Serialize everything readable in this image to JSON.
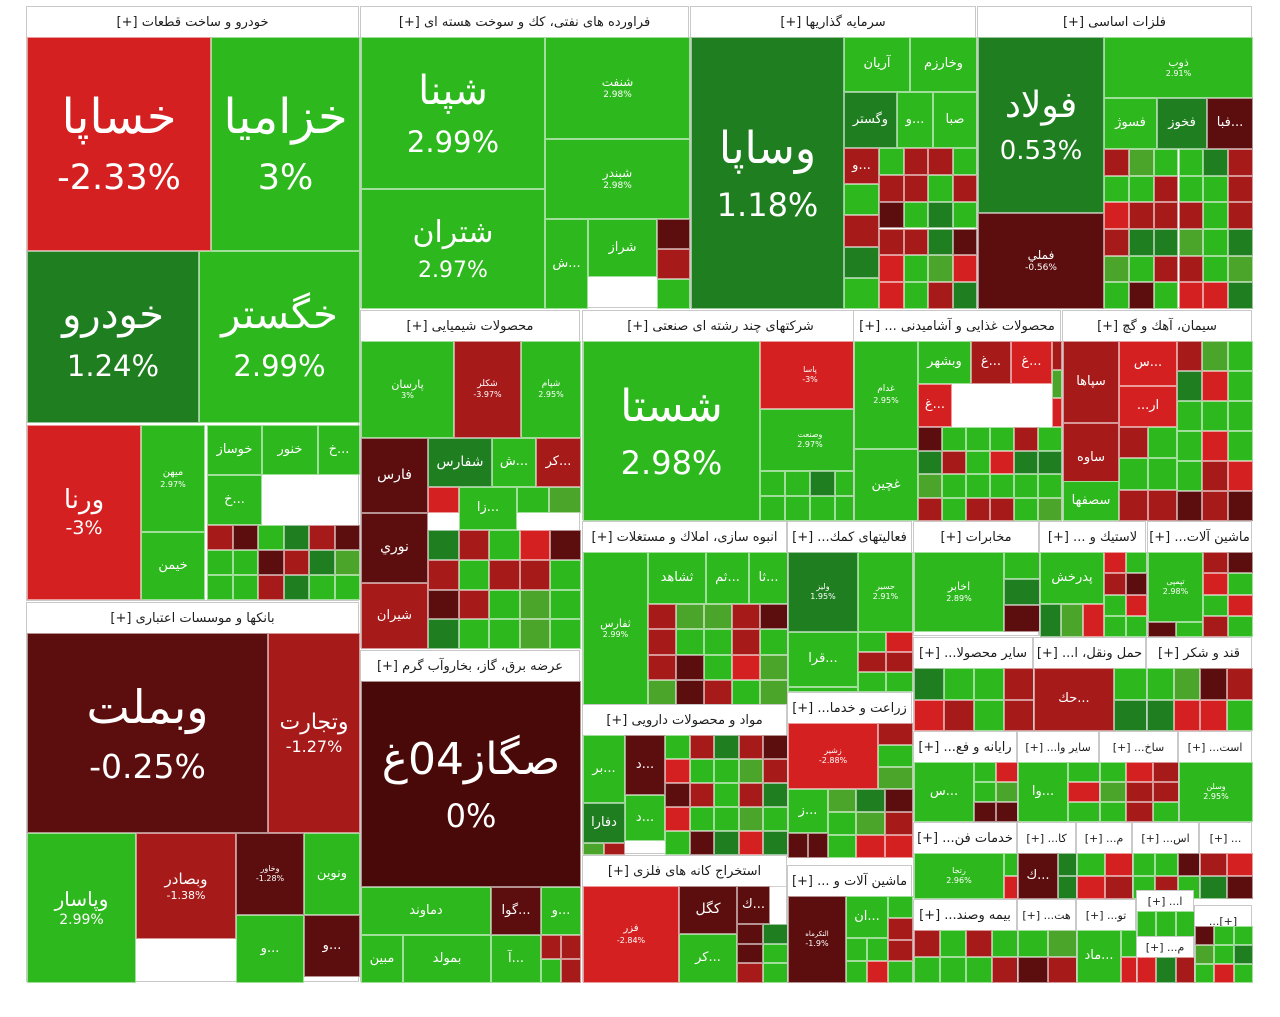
{
  "colors": {
    "up": "#2db81d",
    "upDark": "#1f7e1f",
    "upMid": "#4aa52a",
    "down": "#d42020",
    "downMid": "#a71a1a",
    "downDark": "#5c0d0d",
    "flat": "#4a0909"
  },
  "sections": [
    {
      "id": "auto",
      "title": "خودرو و ساخت قطعات [+]",
      "tiles": [
        {
          "ticker": "خساپا",
          "pct": "-2.33%",
          "tone": "down"
        },
        {
          "ticker": "خزامیا",
          "pct": "3%",
          "tone": "up"
        },
        {
          "ticker": "خودرو",
          "pct": "1.24%",
          "tone": "upDark"
        },
        {
          "ticker": "خگستر",
          "pct": "2.99%",
          "tone": "up"
        },
        {
          "ticker": "ورنا",
          "pct": "-3%",
          "tone": "down"
        },
        {
          "ticker": "خیمن",
          "pct": "",
          "tone": "up"
        },
        {
          "ticker": "ميهن",
          "pct": "2.97%",
          "tone": "up"
        },
        {
          "ticker": "خوساز",
          "pct": "",
          "tone": "up"
        },
        {
          "ticker": "خنور",
          "pct": "",
          "tone": "up"
        },
        {
          "ticker": "خ...",
          "pct": "",
          "tone": "up"
        },
        {
          "ticker": "خ...",
          "pct": "",
          "tone": "up"
        }
      ]
    },
    {
      "id": "oil",
      "title": "فراورده های نفتی، کك و سوخت هسته ای [+]",
      "tiles": [
        {
          "ticker": "شپنا",
          "pct": "2.99%",
          "tone": "up"
        },
        {
          "ticker": "شنفت",
          "pct": "2.98%",
          "tone": "up"
        },
        {
          "ticker": "شبندر",
          "pct": "2.98%",
          "tone": "up"
        },
        {
          "ticker": "شتران",
          "pct": "2.97%",
          "tone": "up"
        },
        {
          "ticker": "شراز",
          "pct": "",
          "tone": "up"
        },
        {
          "ticker": "ش...",
          "pct": "",
          "tone": "up"
        }
      ]
    },
    {
      "id": "invest",
      "title": "سرمایه گذاریها [+]",
      "tiles": [
        {
          "ticker": "وساپا",
          "pct": "1.18%",
          "tone": "upDark"
        },
        {
          "ticker": "آریان",
          "pct": "",
          "tone": "up"
        },
        {
          "ticker": "وخارزم",
          "pct": "",
          "tone": "up"
        },
        {
          "ticker": "وگستر",
          "pct": "",
          "tone": "upDark"
        },
        {
          "ticker": "و...",
          "pct": "",
          "tone": "up"
        },
        {
          "ticker": "صبا",
          "pct": "",
          "tone": "up"
        },
        {
          "ticker": "و...",
          "pct": "",
          "tone": "downMid"
        }
      ]
    },
    {
      "id": "metal",
      "title": "فلزات اساسی [+]",
      "tiles": [
        {
          "ticker": "فولاد",
          "pct": "0.53%",
          "tone": "upDark"
        },
        {
          "ticker": "فملي",
          "pct": "-0.56%",
          "tone": "downDark"
        },
        {
          "ticker": "ذوب",
          "pct": "2.91%",
          "tone": "up"
        },
        {
          "ticker": "فسوژ",
          "pct": "",
          "tone": "up"
        },
        {
          "ticker": "فخوز",
          "pct": "",
          "tone": "upDark"
        },
        {
          "ticker": "فبا...",
          "pct": "",
          "tone": "downDark"
        }
      ]
    },
    {
      "id": "chem",
      "title": "محصولات شیمیایی [+]",
      "tiles": [
        {
          "ticker": "پارسان",
          "pct": "3%",
          "tone": "up"
        },
        {
          "ticker": "شکلر",
          "pct": "-3.97%",
          "tone": "downMid"
        },
        {
          "ticker": "شپام",
          "pct": "2.95%",
          "tone": "up"
        },
        {
          "ticker": "فارس",
          "pct": "",
          "tone": "downDark"
        },
        {
          "ticker": "شفارس",
          "pct": "",
          "tone": "upDark"
        },
        {
          "ticker": "ش...",
          "pct": "",
          "tone": "up"
        },
        {
          "ticker": "کر...",
          "pct": "",
          "tone": "downMid"
        },
        {
          "ticker": "زا...",
          "pct": "",
          "tone": "up"
        },
        {
          "ticker": "نوري",
          "pct": "",
          "tone": "downDark"
        },
        {
          "ticker": "شيران",
          "pct": "",
          "tone": "downMid"
        }
      ]
    },
    {
      "id": "multi",
      "title": "شرکتهای چند رشته ای صنعتی [+]",
      "tiles": [
        {
          "ticker": "شستا",
          "pct": "2.98%",
          "tone": "up"
        },
        {
          "ticker": "پاسا",
          "pct": "-3%",
          "tone": "down"
        },
        {
          "ticker": "وصنعت",
          "pct": "2.97%",
          "tone": "up"
        }
      ]
    },
    {
      "id": "food",
      "title": "محصولات غذایی و آشامیدنی ... [+]",
      "tiles": [
        {
          "ticker": "غدام",
          "pct": "2.95%",
          "tone": "up"
        },
        {
          "ticker": "وبشهر",
          "pct": "",
          "tone": "up"
        },
        {
          "ticker": "غ...",
          "pct": "",
          "tone": "downMid"
        },
        {
          "ticker": "غ...",
          "pct": "",
          "tone": "down"
        },
        {
          "ticker": "غ...",
          "pct": "",
          "tone": "down"
        },
        {
          "ticker": "غچین",
          "pct": "",
          "tone": "up"
        }
      ]
    },
    {
      "id": "cement",
      "title": "سیمان، آهك و گچ [+]",
      "tiles": [
        {
          "ticker": "س...",
          "pct": "",
          "tone": "down"
        },
        {
          "ticker": "سپاها",
          "pct": "",
          "tone": "downMid"
        },
        {
          "ticker": "...ار",
          "pct": "",
          "tone": "down"
        },
        {
          "ticker": "ساوه",
          "pct": "",
          "tone": "downMid"
        },
        {
          "ticker": "سصفها",
          "pct": "",
          "tone": "up"
        }
      ]
    },
    {
      "id": "bank",
      "title": "بانکها و موسسات اعتباری [+]",
      "tiles": [
        {
          "ticker": "وبملت",
          "pct": "-0.25%",
          "tone": "downDark"
        },
        {
          "ticker": "وتجارت",
          "pct": "-1.27%",
          "tone": "downMid"
        },
        {
          "ticker": "وپاسار",
          "pct": "2.99%",
          "tone": "up"
        },
        {
          "ticker": "وبصادر",
          "pct": "-1.38%",
          "tone": "downMid"
        },
        {
          "ticker": "وخاور",
          "pct": "-1.28%",
          "tone": "downDark"
        },
        {
          "ticker": "ونوين",
          "pct": "",
          "tone": "up"
        },
        {
          "ticker": "و...",
          "pct": "",
          "tone": "downDark"
        },
        {
          "ticker": "و...",
          "pct": "",
          "tone": "up"
        }
      ]
    },
    {
      "id": "power",
      "title": "عرضه برق، گاز، بخاروآب گرم [+]",
      "tiles": [
        {
          "ticker": "صگاز04غ",
          "pct": "0%",
          "tone": "flat"
        },
        {
          "ticker": "دماوند",
          "pct": "",
          "tone": "up"
        },
        {
          "ticker": "گوا...",
          "pct": "",
          "tone": "downDark"
        },
        {
          "ticker": "و...",
          "pct": "",
          "tone": "up"
        },
        {
          "ticker": "مبين",
          "pct": "",
          "tone": "up"
        },
        {
          "ticker": "بمولد",
          "pct": "",
          "tone": "up"
        },
        {
          "ticker": "آ...",
          "pct": "",
          "tone": "up"
        }
      ]
    },
    {
      "id": "build",
      "title": "انبوه سازی، املاك و مستغلات [+]",
      "tiles": [
        {
          "ticker": "ثفارس",
          "pct": "2.99%",
          "tone": "up"
        },
        {
          "ticker": "ثشاهد",
          "pct": "",
          "tone": "up"
        },
        {
          "ticker": "ثم...",
          "pct": "",
          "tone": "up"
        },
        {
          "ticker": "ثا...",
          "pct": "",
          "tone": "up"
        }
      ]
    },
    {
      "id": "aux",
      "title": "فعالیتهای کمك... [+]",
      "tiles": [
        {
          "ticker": "ولیز",
          "pct": "1.95%",
          "tone": "upDark"
        },
        {
          "ticker": "حسير",
          "pct": "2.91%",
          "tone": "up"
        },
        {
          "ticker": "قرا...",
          "pct": "",
          "tone": "up"
        }
      ]
    },
    {
      "id": "telecom",
      "title": "مخابرات [+]",
      "tiles": [
        {
          "ticker": "اخابر",
          "pct": "2.89%",
          "tone": "up"
        }
      ]
    },
    {
      "id": "plastic",
      "title": "لاستیك و ... [+]",
      "tiles": [
        {
          "ticker": "پدرخش",
          "pct": "",
          "tone": "up"
        }
      ]
    },
    {
      "id": "mach",
      "title": "ماشین آلات... [+]",
      "tiles": [
        {
          "ticker": "تپمپی",
          "pct": "2.98%",
          "tone": "up"
        }
      ]
    },
    {
      "id": "pharma",
      "title": "مواد و محصولات دارویی [+]",
      "tiles": [
        {
          "ticker": "بر...",
          "pct": "",
          "tone": "up"
        },
        {
          "ticker": "د...",
          "pct": "",
          "tone": "downDark"
        },
        {
          "ticker": "د...",
          "pct": "",
          "tone": "up"
        },
        {
          "ticker": "دفارا",
          "pct": "",
          "tone": "upDark"
        }
      ]
    },
    {
      "id": "other",
      "title": "سایر محصولا... [+]",
      "tiles": []
    },
    {
      "id": "transport",
      "title": "حمل ونقل، ا... [+]",
      "tiles": [
        {
          "ticker": "حك...",
          "pct": "",
          "tone": "downMid"
        }
      ]
    },
    {
      "id": "sugar",
      "title": "قند و شکر [+]",
      "tiles": []
    },
    {
      "id": "farm",
      "title": "زراعت و خدما... [+]",
      "tiles": [
        {
          "ticker": "زشير",
          "pct": "-2.88%",
          "tone": "down"
        },
        {
          "ticker": "ز...",
          "pct": "",
          "tone": "up"
        }
      ]
    },
    {
      "id": "computer",
      "title": "رایانه و فع... [+]",
      "tiles": [
        {
          "ticker": "س...",
          "pct": "",
          "tone": "up"
        }
      ]
    },
    {
      "id": "otherfin",
      "title": "سایر وا... [+]",
      "tiles": [
        {
          "ticker": "وا...",
          "pct": "",
          "tone": "up"
        }
      ]
    },
    {
      "id": "sakh",
      "title": "ساخ... [+]",
      "tiles": []
    },
    {
      "id": "ext",
      "title": "است... [+]",
      "tiles": [
        {
          "ticker": "وسلن",
          "pct": "2.95%",
          "tone": "up"
        }
      ]
    },
    {
      "id": "tech",
      "title": "خدمات فن... [+]",
      "tiles": [
        {
          "ticker": "رتجا",
          "pct": "2.96%",
          "tone": "up"
        }
      ]
    },
    {
      "id": "ka",
      "title": "کا... [+]",
      "tiles": [
        {
          "ticker": "ك...",
          "pct": "",
          "tone": "downDark"
        }
      ]
    },
    {
      "id": "m1",
      "title": "م... [+]",
      "tiles": []
    },
    {
      "id": "as",
      "title": "اس... [+]",
      "tiles": []
    },
    {
      "id": "dots1",
      "title": "... [+]",
      "tiles": []
    },
    {
      "id": "mine",
      "title": "استخراج کانه های فلزی [+]",
      "tiles": [
        {
          "ticker": "فزر",
          "pct": "-2.84%",
          "tone": "down"
        },
        {
          "ticker": "کگل",
          "pct": "",
          "tone": "downDark"
        },
        {
          "ticker": "ك...",
          "pct": "",
          "tone": "downDark"
        },
        {
          "ticker": "کر...",
          "pct": "",
          "tone": "up"
        }
      ]
    },
    {
      "id": "mach2",
      "title": "ماشین آلات و ... [+]",
      "tiles": [
        {
          "ticker": "التکرماه",
          "pct": "-1.9%",
          "tone": "downDark"
        },
        {
          "ticker": "ان...",
          "pct": "",
          "tone": "up"
        }
      ]
    },
    {
      "id": "insur",
      "title": "بیمه وصند... [+]",
      "tiles": []
    },
    {
      "id": "he",
      "title": "هت... [+]",
      "tiles": []
    },
    {
      "id": "tu",
      "title": "تو... [+]",
      "tiles": [
        {
          "ticker": "ماد...",
          "pct": "",
          "tone": "up"
        }
      ]
    },
    {
      "id": "a1",
      "title": "ا... [+]",
      "tiles": []
    },
    {
      "id": "m2",
      "title": "م... [+]",
      "tiles": []
    },
    {
      "id": "plus",
      "title": "[+]...",
      "tiles": []
    }
  ]
}
